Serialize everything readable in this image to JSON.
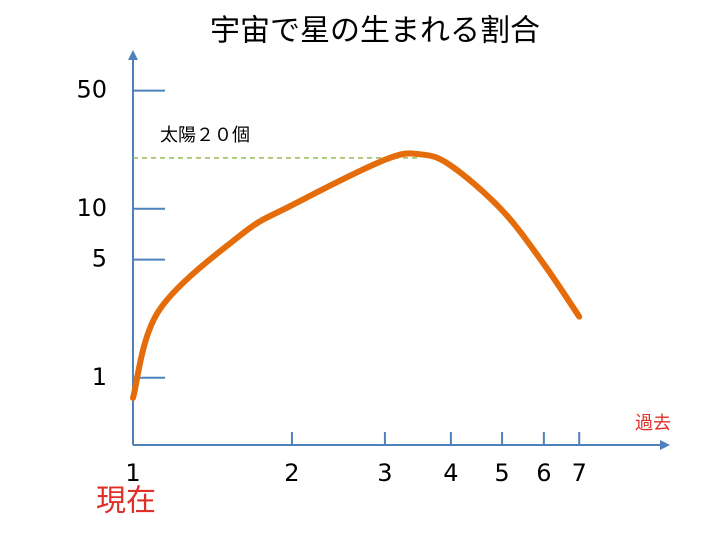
{
  "chart_data": {
    "type": "line",
    "title": "宇宙で星の生まれる割合",
    "x_label": "過去",
    "x_annotation": "現在",
    "x": [
      1,
      1.12,
      1.6,
      2,
      3,
      3.5,
      4,
      5,
      6,
      7
    ],
    "series": [
      {
        "name": "星の生まれる割合",
        "color": "#e46c0a",
        "values": [
          0.76,
          2.5,
          7,
          10.5,
          19.5,
          21,
          18,
          9.8,
          4.7,
          2.3
        ]
      }
    ],
    "xlim": [
      1,
      10.4
    ],
    "xticks": [
      1,
      2,
      3,
      4,
      5,
      6,
      7
    ],
    "xscale": "log",
    "ylim": [
      0.4,
      87
    ],
    "yticks": [
      1,
      5,
      10,
      50
    ],
    "yscale": "log",
    "axis_color": "#4f81bd",
    "reference_line": {
      "value": 20,
      "label": "太陽２０個",
      "color": "#9bbb59"
    }
  }
}
